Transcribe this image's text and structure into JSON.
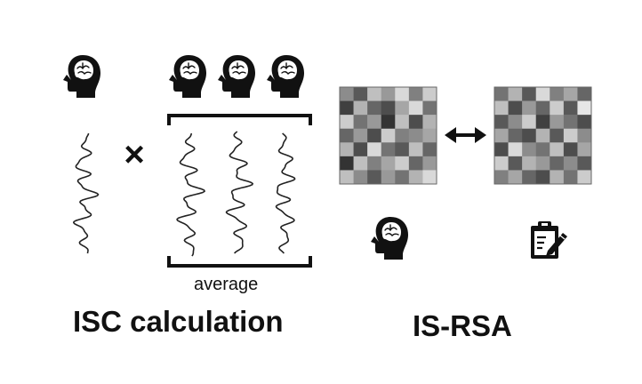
{
  "isc": {
    "title": "ISC calculation",
    "average_label": "average",
    "operator": "×",
    "icons": [
      "brain-head-icon",
      "brain-head-icon",
      "brain-head-icon",
      "brain-head-icon"
    ]
  },
  "isrsa": {
    "title": "IS-RSA",
    "comparison": "double-arrow-icon",
    "icons": [
      "brain-head-icon",
      "clipboard-edit-icon"
    ],
    "matrix_left": [
      [
        0.55,
        0.35,
        0.75,
        0.6,
        0.85,
        0.5,
        0.8
      ],
      [
        0.25,
        0.7,
        0.4,
        0.3,
        0.65,
        0.85,
        0.45
      ],
      [
        0.8,
        0.45,
        0.6,
        0.2,
        0.75,
        0.3,
        0.7
      ],
      [
        0.4,
        0.6,
        0.3,
        0.8,
        0.5,
        0.55,
        0.65
      ],
      [
        0.7,
        0.3,
        0.85,
        0.45,
        0.35,
        0.75,
        0.4
      ],
      [
        0.2,
        0.75,
        0.5,
        0.65,
        0.8,
        0.4,
        0.6
      ],
      [
        0.75,
        0.55,
        0.35,
        0.6,
        0.45,
        0.7,
        0.85
      ]
    ],
    "matrix_right": [
      [
        0.45,
        0.7,
        0.35,
        0.85,
        0.5,
        0.65,
        0.4
      ],
      [
        0.75,
        0.3,
        0.6,
        0.4,
        0.8,
        0.35,
        0.9
      ],
      [
        0.35,
        0.55,
        0.8,
        0.25,
        0.6,
        0.45,
        0.3
      ],
      [
        0.65,
        0.4,
        0.3,
        0.7,
        0.35,
        0.8,
        0.55
      ],
      [
        0.3,
        0.85,
        0.55,
        0.45,
        0.75,
        0.3,
        0.65
      ],
      [
        0.8,
        0.35,
        0.7,
        0.6,
        0.4,
        0.55,
        0.35
      ],
      [
        0.5,
        0.65,
        0.4,
        0.3,
        0.7,
        0.45,
        0.8
      ]
    ]
  }
}
